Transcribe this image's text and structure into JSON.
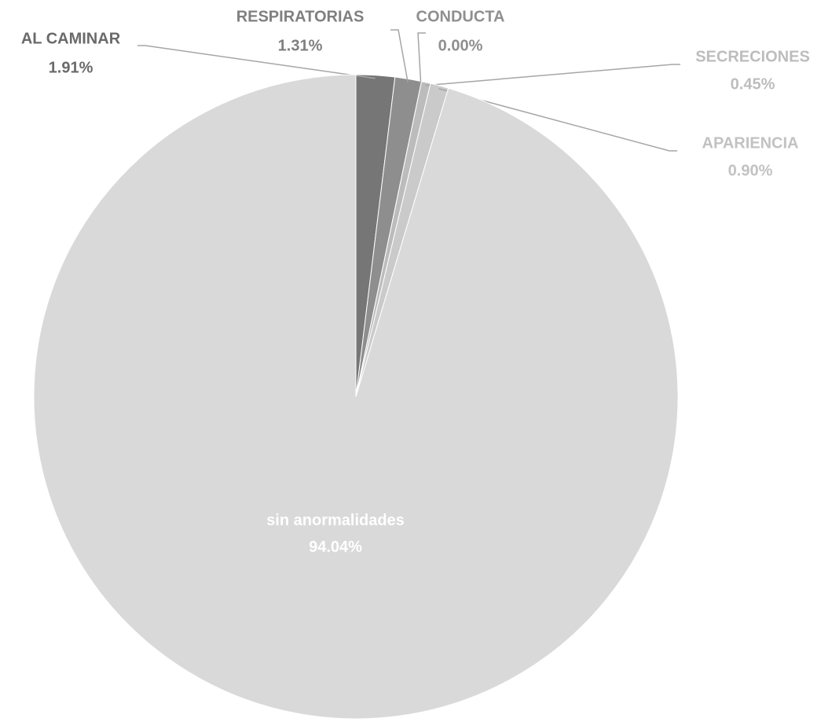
{
  "chart_data": {
    "type": "pie",
    "categories": [
      "AL CAMINAR",
      "RESPIRATORIAS",
      "CONDUCTA",
      "SECRECIONES",
      "APARIENCIA",
      "sin anormalidades"
    ],
    "values": [
      1.91,
      1.31,
      0.0,
      0.45,
      0.9,
      94.04
    ],
    "value_labels": [
      "1.91%",
      "1.31%",
      "0.00%",
      "0.45%",
      "0.90%",
      "94.04%"
    ],
    "colors": [
      "#767676",
      "#8e8e8e",
      "#a6a6a6",
      "#bcbcbc",
      "#cacaca",
      "#d9d9d9"
    ]
  }
}
